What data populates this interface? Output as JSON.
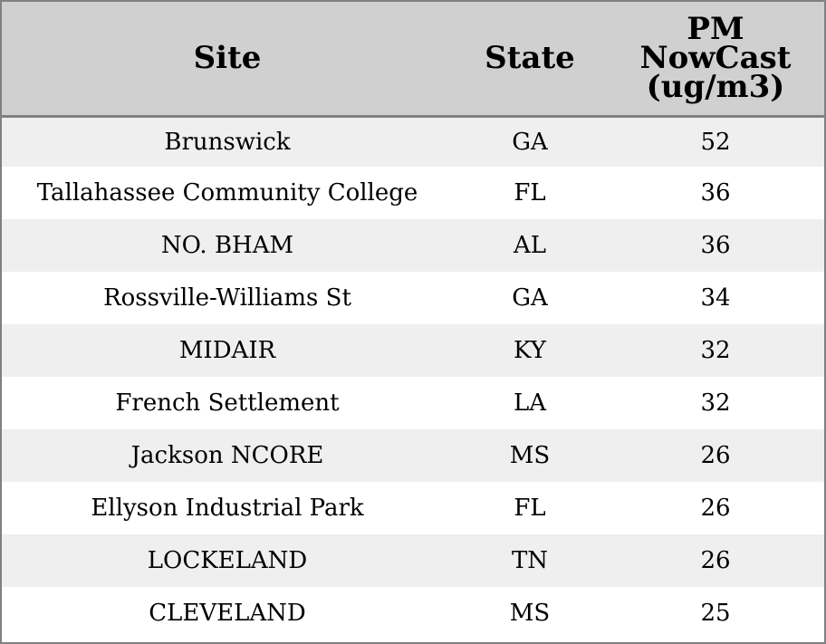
{
  "chart_data": {
    "type": "table",
    "columns": [
      "Site",
      "State",
      "PM\nNowCast\n(ug/m3)"
    ],
    "rows": [
      [
        "Brunswick",
        "GA",
        "52"
      ],
      [
        "Tallahassee Community College",
        "FL",
        "36"
      ],
      [
        "NO. BHAM",
        "AL",
        "36"
      ],
      [
        "Rossville-Williams St",
        "GA",
        "34"
      ],
      [
        "MIDAIR",
        "KY",
        "32"
      ],
      [
        "French Settlement",
        "LA",
        "32"
      ],
      [
        "Jackson NCORE",
        "MS",
        "26"
      ],
      [
        "Ellyson Industrial Park",
        "FL",
        "26"
      ],
      [
        "LOCKELAND",
        "TN",
        "26"
      ],
      [
        "CLEVELAND",
        "MS",
        "25"
      ]
    ],
    "colors": {
      "header_bg": "#d0d0d0",
      "stripe_bg": "#efefef",
      "row_bg": "#ffffff",
      "border": "#808080"
    }
  }
}
